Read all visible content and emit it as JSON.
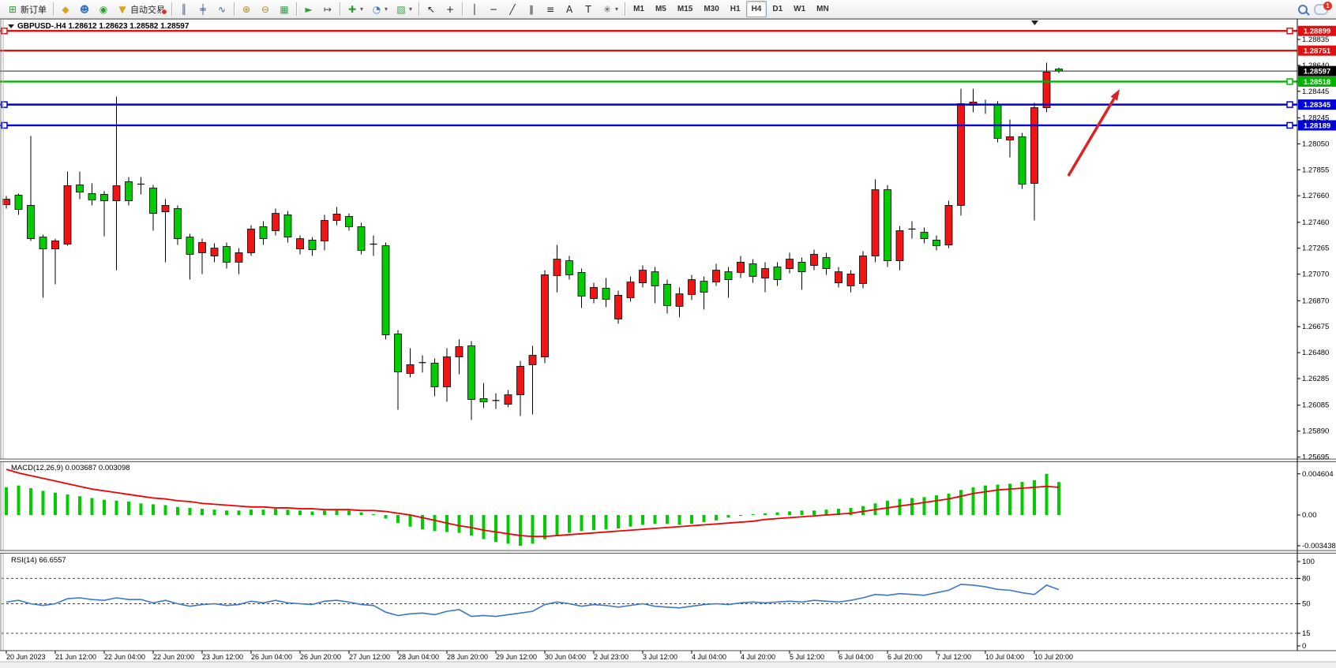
{
  "toolbar": {
    "groups": [
      [
        {
          "name": "new-order-button",
          "icon": "new-order-icon",
          "glyph": "⊞",
          "color": "#2e9e2e",
          "label": "新订单"
        }
      ],
      [
        {
          "name": "market-watch-button",
          "icon": "market-watch-icon",
          "glyph": "◆",
          "color": "#d8a41e"
        },
        {
          "name": "chat-button",
          "icon": "chat-icon",
          "glyph": "☻",
          "color": "#3b78c4"
        },
        {
          "name": "signals-button",
          "icon": "signal-icon",
          "glyph": "◉",
          "color": "#2e9e2e"
        },
        {
          "name": "auto-trading-button",
          "icon": "auto-trading-icon",
          "glyph": "▼",
          "color": "#d8a41e",
          "label": "自动交易",
          "dot": true
        }
      ],
      [
        {
          "name": "bar-chart-button",
          "icon": "bar-chart-icon",
          "glyph": "║",
          "color": "#3a5a8c"
        },
        {
          "name": "candlestick-chart-button",
          "icon": "candlestick-icon",
          "glyph": "╪",
          "color": "#3a5a8c"
        },
        {
          "name": "line-chart-button",
          "icon": "line-chart-icon",
          "glyph": "∿",
          "color": "#3a5a8c"
        }
      ],
      [
        {
          "name": "zoom-in-button",
          "icon": "zoom-in-icon",
          "glyph": "⊕",
          "color": "#b08818"
        },
        {
          "name": "zoom-out-button",
          "icon": "zoom-out-icon",
          "glyph": "⊖",
          "color": "#b08818"
        },
        {
          "name": "tile-windows-button",
          "icon": "tile-windows-icon",
          "glyph": "▦",
          "color": "#3b9e4e"
        }
      ],
      [
        {
          "name": "auto-scroll-button",
          "icon": "auto-scroll-icon",
          "glyph": "►",
          "color": "#2e9e2e"
        },
        {
          "name": "chart-shift-button",
          "icon": "chart-shift-icon",
          "glyph": "↦",
          "color": "#444444"
        }
      ],
      [
        {
          "name": "indicators-button",
          "icon": "indicators-icon",
          "glyph": "✚",
          "color": "#2e9e2e",
          "caret": true
        },
        {
          "name": "periods-button",
          "icon": "clock-icon",
          "glyph": "◔",
          "color": "#3b78c4",
          "caret": true
        },
        {
          "name": "templates-button",
          "icon": "template-icon",
          "glyph": "▧",
          "color": "#3b9e4e",
          "caret": true
        }
      ],
      [
        {
          "name": "cursor-button",
          "icon": "cursor-icon",
          "glyph": "↖",
          "color": "#222222"
        },
        {
          "name": "crosshair-button",
          "icon": "crosshair-icon",
          "glyph": "+",
          "color": "#222222"
        }
      ],
      [
        {
          "name": "vertical-line-button",
          "icon": "vertical-line-icon",
          "glyph": "│",
          "color": "#222222"
        },
        {
          "name": "horizontal-line-button",
          "icon": "horizontal-line-icon",
          "glyph": "─",
          "color": "#222222"
        },
        {
          "name": "trendline-button",
          "icon": "trendline-icon",
          "glyph": "╱",
          "color": "#222222"
        },
        {
          "name": "channel-button",
          "icon": "channel-icon",
          "glyph": "∥",
          "color": "#222222"
        },
        {
          "name": "fibonacci-button",
          "icon": "fibonacci-icon",
          "glyph": "≡",
          "color": "#222222"
        },
        {
          "name": "text-button",
          "icon": "text-icon",
          "glyph": "A",
          "color": "#222222"
        },
        {
          "name": "text-label-button",
          "icon": "text-label-icon",
          "glyph": "T",
          "color": "#222222"
        },
        {
          "name": "arrows-button",
          "icon": "arrows-icon",
          "glyph": "✳",
          "color": "#555555",
          "caret": true
        }
      ]
    ],
    "timeframes": [
      "M1",
      "M5",
      "M15",
      "M30",
      "H1",
      "H4",
      "D1",
      "W1",
      "MN"
    ],
    "active_timeframe": "H4",
    "notification_badge": "1"
  },
  "chart": {
    "title": "GBPUSD-.H4  1.28612 1.28623 1.28582 1.28597",
    "symbol": "GBPUSD-",
    "period": "H4",
    "open": "1.28612",
    "high": "1.28623",
    "low": "1.28582",
    "close": "1.28597"
  },
  "macd": {
    "label": "MACD(12,26,9) 0.003687 0.003098",
    "value_main": "0.003687",
    "value_signal": "0.003098",
    "axis": [
      "0.004604",
      "0.00",
      "-0.003438"
    ]
  },
  "rsi": {
    "label": "RSI(14) 66.6557",
    "value": "66.6557",
    "axis": [
      "100",
      "80",
      "50",
      "15",
      "0"
    ],
    "levels": [
      80,
      50,
      15
    ]
  },
  "price_axis_ticks": [
    "1.28835",
    "1.28640",
    "1.28445",
    "1.28245",
    "1.28050",
    "1.27855",
    "1.27660",
    "1.27460",
    "1.27265",
    "1.27070",
    "1.26870",
    "1.26675",
    "1.26480",
    "1.26285",
    "1.26085",
    "1.25890",
    "1.25695"
  ],
  "price_tags": [
    {
      "text": "1.28899",
      "bg": "#dd1111",
      "price": 1.28899
    },
    {
      "text": "1.28751",
      "bg": "#dd1111",
      "price": 1.28751
    },
    {
      "text": "1.28597",
      "bg": "#000000",
      "price": 1.28597
    },
    {
      "text": "1.28518",
      "bg": "#00b400",
      "price": 1.28518
    },
    {
      "text": "1.28345",
      "bg": "#0000dd",
      "price": 1.28345
    },
    {
      "text": "1.28189",
      "bg": "#0000dd",
      "price": 1.28189
    }
  ],
  "chart_data": {
    "type": "candlestick",
    "instrument": "GBPUSD-",
    "timeframe": "H4",
    "up_color": "#f01414",
    "down_color": "#00cc00",
    "time_labels": [
      "20 Jun 2023",
      "21 Jun 12:00",
      "22 Jun 04:00",
      "22 Jun 20:00",
      "23 Jun 12:00",
      "26 Jun 04:00",
      "26 Jun 20:00",
      "27 Jun 12:00",
      "28 Jun 04:00",
      "28 Jun 20:00",
      "29 Jun 12:00",
      "30 Jun 04:00",
      "2 Jul 23:00",
      "3 Jul 12:00",
      "4 Jul 04:00",
      "4 Jul 20:00",
      "5 Jul 12:00",
      "6 Jul 04:00",
      "6 Jul 20:00",
      "7 Jul 12:00",
      "10 Jul 04:00",
      "10 Jul 20:00"
    ],
    "candles": [
      [
        1.27593,
        1.27658,
        1.27563,
        1.27634
      ],
      [
        1.27664,
        1.27676,
        1.27516,
        1.27557
      ],
      [
        1.27587,
        1.28109,
        1.2732,
        1.27337
      ],
      [
        1.27349,
        1.27367,
        1.26893,
        1.2726
      ],
      [
        1.2726,
        1.27337,
        1.26994,
        1.2732
      ],
      [
        1.27296,
        1.27842,
        1.27284,
        1.27735
      ],
      [
        1.27741,
        1.27842,
        1.27634,
        1.27687
      ],
      [
        1.27676,
        1.27753,
        1.27587,
        1.27628
      ],
      [
        1.2767,
        1.27694,
        1.27355,
        1.27622
      ],
      [
        1.27622,
        1.28405,
        1.271,
        1.27735
      ],
      [
        1.27765,
        1.278,
        1.27587,
        1.27622
      ],
      [
        1.27753,
        1.278,
        1.2767,
        1.27747
      ],
      [
        1.27717,
        1.27741,
        1.27397,
        1.27527
      ],
      [
        1.27539,
        1.27634,
        1.2716,
        1.27587
      ],
      [
        1.27563,
        1.27587,
        1.2729,
        1.27337
      ],
      [
        1.27349,
        1.27373,
        1.27029,
        1.27219
      ],
      [
        1.27231,
        1.27337,
        1.27071,
        1.27308
      ],
      [
        1.27207,
        1.27302,
        1.2716,
        1.27266
      ],
      [
        1.27278,
        1.27308,
        1.27112,
        1.2716
      ],
      [
        1.2716,
        1.27266,
        1.27071,
        1.27231
      ],
      [
        1.27231,
        1.27438,
        1.27207,
        1.27409
      ],
      [
        1.27427,
        1.27468,
        1.2729,
        1.27337
      ],
      [
        1.27397,
        1.27563,
        1.27361,
        1.27527
      ],
      [
        1.27516,
        1.27545,
        1.27308,
        1.27349
      ],
      [
        1.2726,
        1.27361,
        1.27219,
        1.27337
      ],
      [
        1.27326,
        1.27349,
        1.27207,
        1.27254
      ],
      [
        1.2732,
        1.27516,
        1.27249,
        1.27474
      ],
      [
        1.27474,
        1.27575,
        1.27438,
        1.27522
      ],
      [
        1.27504,
        1.27527,
        1.27397,
        1.27427
      ],
      [
        1.27427,
        1.27456,
        1.27219,
        1.27249
      ],
      [
        1.27302,
        1.27361,
        1.27207,
        1.27296
      ],
      [
        1.27284,
        1.27308,
        1.26579,
        1.26614
      ],
      [
        1.2662,
        1.2665,
        1.26051,
        1.26335
      ],
      [
        1.26324,
        1.26513,
        1.26294,
        1.26389
      ],
      [
        1.26413,
        1.2646,
        1.2633,
        1.26405
      ],
      [
        1.26401,
        1.26436,
        1.26152,
        1.26223
      ],
      [
        1.26223,
        1.26513,
        1.2611,
        1.26448
      ],
      [
        1.26448,
        1.26579,
        1.26318,
        1.26525
      ],
      [
        1.26531,
        1.26567,
        1.25974,
        1.26128
      ],
      [
        1.26134,
        1.26252,
        1.26063,
        1.2611
      ],
      [
        1.26128,
        1.26175,
        1.26057,
        1.2612
      ],
      [
        1.26092,
        1.26199,
        1.26069,
        1.26163
      ],
      [
        1.26163,
        1.26418,
        1.26003,
        1.26377
      ],
      [
        1.26389,
        1.26531,
        1.26015,
        1.2646
      ],
      [
        1.26448,
        1.271,
        1.26401,
        1.27065
      ],
      [
        1.27059,
        1.2729,
        1.26934,
        1.27183
      ],
      [
        1.27171,
        1.27207,
        1.27029,
        1.27065
      ],
      [
        1.27083,
        1.27112,
        1.26816,
        1.26905
      ],
      [
        1.26887,
        1.27005,
        1.26851,
        1.2697
      ],
      [
        1.26964,
        1.27041,
        1.26822,
        1.26881
      ],
      [
        1.26733,
        1.26946,
        1.26697,
        1.26911
      ],
      [
        1.26893,
        1.27053,
        1.26863,
        1.27011
      ],
      [
        1.27005,
        1.27136,
        1.2697,
        1.271
      ],
      [
        1.27088,
        1.27124,
        1.26851,
        1.26982
      ],
      [
        1.26994,
        1.27029,
        1.26774,
        1.26834
      ],
      [
        1.26828,
        1.2697,
        1.26745,
        1.26922
      ],
      [
        1.26917,
        1.27065,
        1.26875,
        1.27029
      ],
      [
        1.27017,
        1.27053,
        1.26804,
        1.26934
      ],
      [
        1.27011,
        1.27148,
        1.26982,
        1.271
      ],
      [
        1.27088,
        1.27124,
        1.26893,
        1.27029
      ],
      [
        1.27083,
        1.27207,
        1.27041,
        1.2716
      ],
      [
        1.27148,
        1.27183,
        1.27005,
        1.27053
      ],
      [
        1.27041,
        1.2716,
        1.26934,
        1.27112
      ],
      [
        1.27124,
        1.2716,
        1.26982,
        1.27029
      ],
      [
        1.27112,
        1.27231,
        1.27077,
        1.27183
      ],
      [
        1.2716,
        1.27195,
        1.26952,
        1.27088
      ],
      [
        1.27136,
        1.27254,
        1.271,
        1.27219
      ],
      [
        1.27195,
        1.27231,
        1.27065,
        1.27112
      ],
      [
        1.27005,
        1.27124,
        1.2697,
        1.27088
      ],
      [
        1.26982,
        1.271,
        1.26934,
        1.27071
      ],
      [
        1.26999,
        1.27243,
        1.26964,
        1.27207
      ],
      [
        1.27207,
        1.27783,
        1.2716,
        1.27705
      ],
      [
        1.27705,
        1.27741,
        1.27124,
        1.27171
      ],
      [
        1.27171,
        1.27432,
        1.271,
        1.27397
      ],
      [
        1.27401,
        1.27468,
        1.27337,
        1.27409
      ],
      [
        1.27385,
        1.27421,
        1.27302,
        1.27337
      ],
      [
        1.27326,
        1.27361,
        1.27249,
        1.27284
      ],
      [
        1.2729,
        1.27622,
        1.27266,
        1.27587
      ],
      [
        1.27587,
        1.28464,
        1.2751,
        1.28352
      ],
      [
        1.2834,
        1.28464,
        1.28287,
        1.28364
      ],
      [
        1.2834,
        1.28381,
        1.28275,
        1.28346
      ],
      [
        1.28346,
        1.2837,
        1.28061,
        1.28091
      ],
      [
        1.28079,
        1.28233,
        1.27948,
        1.28103
      ],
      [
        1.28103,
        1.28132,
        1.27711,
        1.27747
      ],
      [
        1.27753,
        1.28358,
        1.27474,
        1.28322
      ],
      [
        1.28322,
        1.2866,
        1.28287,
        1.28589
      ],
      [
        1.28612,
        1.28623,
        1.28582,
        1.28597
      ]
    ],
    "hlines": [
      {
        "price": 1.28899,
        "color": "#dd1111",
        "handles": [
          "left",
          "right"
        ]
      },
      {
        "price": 1.28751,
        "color": "#dd1111",
        "handles": []
      },
      {
        "price": 1.28518,
        "color": "#00b400",
        "handles": [
          "right"
        ]
      },
      {
        "price": 1.28345,
        "color": "#0000dd",
        "handles": [
          "left",
          "right"
        ]
      },
      {
        "price": 1.28189,
        "color": "#0000dd",
        "handles": [
          "left",
          "right"
        ]
      }
    ],
    "current_price": 1.28597,
    "macd_hist": [
      0.0031,
      0.0033,
      0.003,
      0.0027,
      0.0025,
      0.0023,
      0.0021,
      0.0019,
      0.0017,
      0.0016,
      0.0015,
      0.0013,
      0.0012,
      0.0011,
      0.0009,
      0.0008,
      0.0007,
      0.0006,
      0.0005,
      0.0005,
      0.0006,
      0.0006,
      0.0007,
      0.0006,
      0.0005,
      0.0004,
      0.0005,
      0.0006,
      0.0005,
      0.0003,
      0.0001,
      -0.0004,
      -0.0009,
      -0.0013,
      -0.0016,
      -0.0018,
      -0.0019,
      -0.002,
      -0.0023,
      -0.0027,
      -0.003,
      -0.0032,
      -0.003438,
      -0.0032,
      -0.0027,
      -0.0023,
      -0.002,
      -0.0018,
      -0.0017,
      -0.0016,
      -0.0015,
      -0.0013,
      -0.0011,
      -0.001,
      -0.001,
      -0.0011,
      -0.001,
      -0.0008,
      -0.0006,
      -0.0003,
      -0.0001,
      0.0001,
      0.0002,
      0.0003,
      0.0004,
      0.0005,
      0.0005,
      0.0006,
      0.0007,
      0.0008,
      0.001,
      0.0013,
      0.0016,
      0.0018,
      0.0019,
      0.002,
      0.0022,
      0.0024,
      0.0028,
      0.0031,
      0.0033,
      0.0034,
      0.0035,
      0.0037,
      0.0039,
      0.004604,
      0.003687
    ],
    "macd_signal": [
      0.0051,
      0.0047,
      0.0044,
      0.0041,
      0.0038,
      0.0035,
      0.0032,
      0.0029,
      0.0027,
      0.0025,
      0.0023,
      0.0021,
      0.0019,
      0.0018,
      0.0016,
      0.0015,
      0.0013,
      0.0012,
      0.0011,
      0.001,
      0.0009,
      0.0009,
      0.0008,
      0.0008,
      0.0007,
      0.0007,
      0.0006,
      0.0006,
      0.0006,
      0.0005,
      0.0005,
      0.0004,
      0.0002,
      0.0,
      -0.0003,
      -0.0006,
      -0.0009,
      -0.0012,
      -0.0014,
      -0.0017,
      -0.0019,
      -0.0021,
      -0.0023,
      -0.0024,
      -0.0024,
      -0.0023,
      -0.0022,
      -0.0021,
      -0.002,
      -0.0019,
      -0.0018,
      -0.0017,
      -0.0016,
      -0.0015,
      -0.0014,
      -0.0013,
      -0.0012,
      -0.0011,
      -0.001,
      -0.0009,
      -0.0008,
      -0.0007,
      -0.0005,
      -0.0004,
      -0.0003,
      -0.0002,
      -0.0001,
      0.0,
      0.0001,
      0.0002,
      0.0004,
      0.0006,
      0.0008,
      0.001,
      0.0012,
      0.0014,
      0.0016,
      0.0018,
      0.0021,
      0.0024,
      0.0026,
      0.0028,
      0.0029,
      0.003,
      0.0031,
      0.0032,
      0.003098
    ],
    "rsi_values": [
      52,
      54,
      50,
      48,
      50,
      56,
      57,
      55,
      54,
      57,
      55,
      55,
      51,
      54,
      50,
      47,
      49,
      50,
      48,
      49,
      53,
      51,
      54,
      51,
      50,
      49,
      53,
      54,
      52,
      49,
      48,
      40,
      36,
      38,
      39,
      37,
      41,
      43,
      35,
      36,
      35,
      37,
      39,
      41,
      49,
      52,
      50,
      47,
      49,
      48,
      46,
      48,
      50,
      47,
      46,
      45,
      47,
      49,
      50,
      49,
      51,
      52,
      51,
      52,
      53,
      52,
      54,
      53,
      52,
      54,
      57,
      61,
      60,
      62,
      61,
      60,
      63,
      66,
      73,
      72,
      70,
      67,
      66,
      63,
      61,
      72,
      66.6557
    ],
    "annotation_arrow": {
      "from": [
        1353,
        222
      ],
      "to": [
        1418,
        112
      ],
      "color": "#e02020"
    }
  }
}
